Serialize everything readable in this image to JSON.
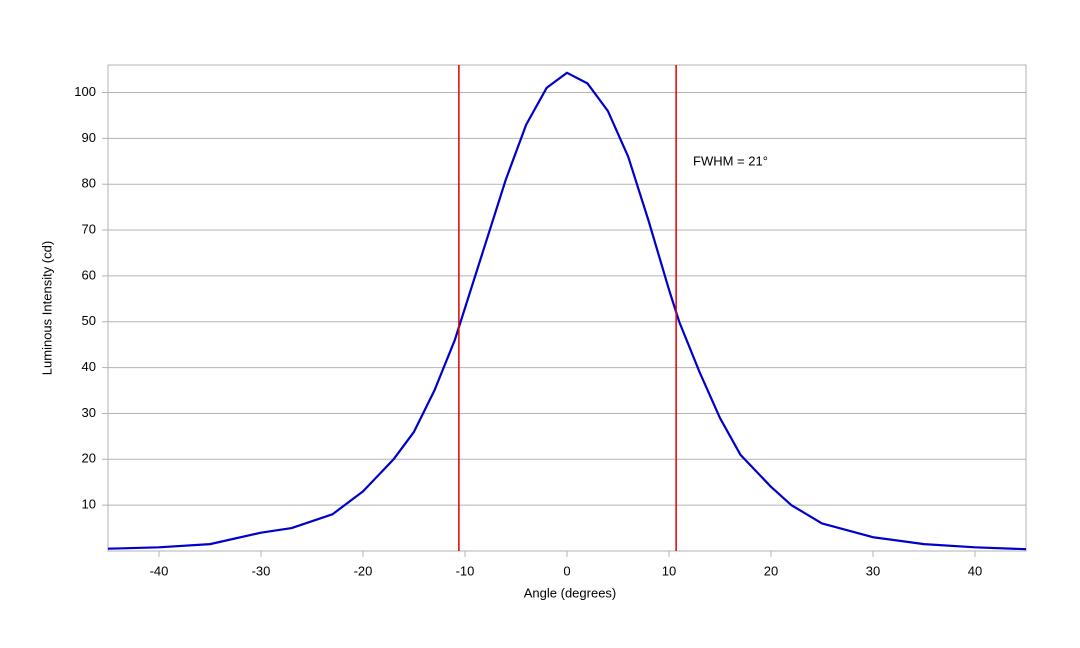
{
  "chart_data": {
    "type": "line",
    "x_label": "Angle (degrees)",
    "y_label": "Luminous Intensity (cd)",
    "annotation": "FWHM = 21°",
    "x": [
      -45,
      -40,
      -35,
      -30,
      -27,
      -23,
      -20,
      -17,
      -15,
      -13,
      -11,
      -10,
      -8,
      -6,
      -4,
      -2,
      0,
      2,
      4,
      6,
      8,
      10,
      11,
      13,
      15,
      17,
      20,
      22,
      25,
      30,
      35,
      40,
      45
    ],
    "series": [
      {
        "name": "Luminous Intensity",
        "color": "#0000cc",
        "values": [
          0.5,
          0.8,
          1.5,
          4,
          5,
          8,
          13,
          20,
          26,
          35,
          46,
          53,
          67,
          81,
          93,
          101,
          104.3,
          102,
          96,
          86,
          72,
          57,
          50,
          39,
          29,
          21,
          14,
          10,
          6,
          3,
          1.5,
          0.8,
          0.4
        ]
      }
    ],
    "vlines": [
      -10.6,
      10.7
    ],
    "vline_color": "#e00000",
    "xlim": [
      -45,
      45
    ],
    "xticks": [
      -40,
      -30,
      -20,
      -10,
      0,
      10,
      20,
      30,
      40
    ],
    "ylim": [
      0,
      106
    ],
    "yticks": [
      10,
      20,
      30,
      40,
      50,
      60,
      70,
      80,
      90,
      100
    ],
    "grid": true
  }
}
